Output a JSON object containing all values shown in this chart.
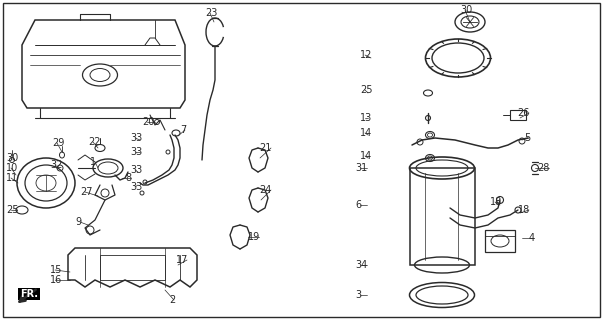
{
  "fig_width": 6.03,
  "fig_height": 3.2,
  "dpi": 100,
  "bg_color": "#ffffff",
  "image_data": ""
}
